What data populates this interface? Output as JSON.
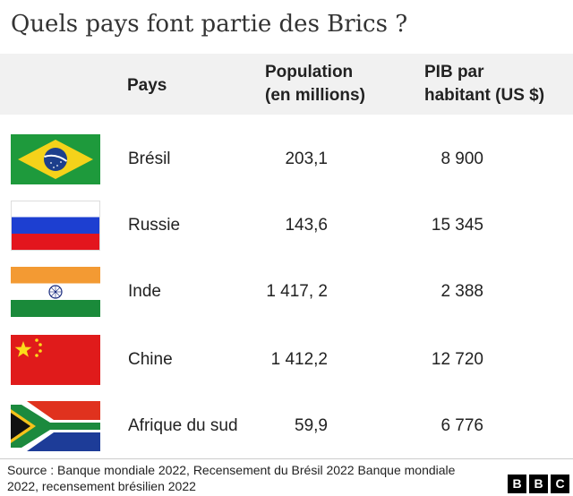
{
  "title": "Quels pays font partie des Brics ?",
  "table": {
    "headers": {
      "country": "Pays",
      "population_line1": "Population",
      "population_line2": "(en millions)",
      "gdp_line1": "PIB par",
      "gdp_line2": "habitant (US $)"
    },
    "rows": [
      {
        "country": "Brésil",
        "population": "203,1",
        "gdp_per_capita": "8 900",
        "flag": "brazil-flag-icon"
      },
      {
        "country": "Russie",
        "population": "143,6",
        "gdp_per_capita": "15 345",
        "flag": "russia-flag-icon"
      },
      {
        "country": "Inde",
        "population": "1 417, 2",
        "gdp_per_capita": "2 388",
        "flag": "india-flag-icon"
      },
      {
        "country": "Chine",
        "population": "1 412,2",
        "gdp_per_capita": "12 720",
        "flag": "china-flag-icon"
      },
      {
        "country": "Afrique du sud",
        "population": "59,9",
        "gdp_per_capita": "6 776",
        "flag": "south-africa-flag-icon"
      }
    ]
  },
  "footer": {
    "source": "Source : Banque mondiale 2022, Recensement du Brésil 2022 Banque mondiale 2022, recensement brésilien 2022",
    "logo_letters": [
      "B",
      "B",
      "C"
    ]
  }
}
